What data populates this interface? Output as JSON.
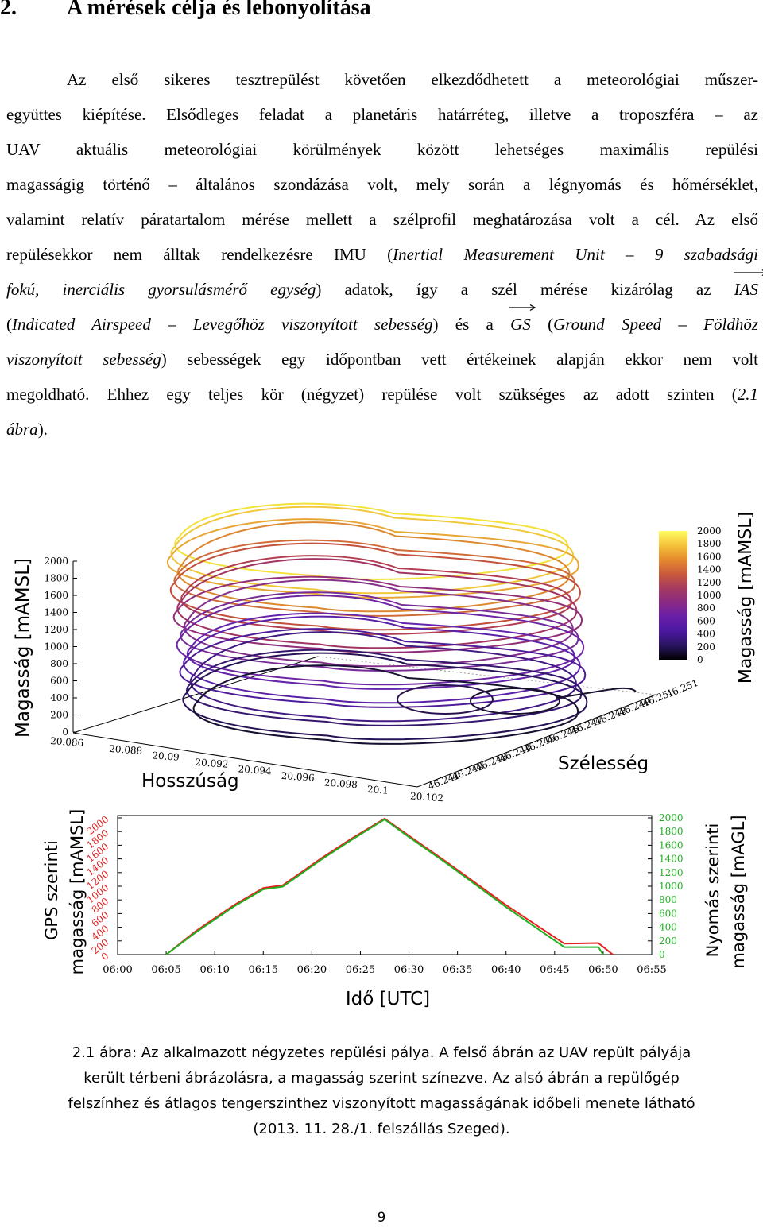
{
  "heading": {
    "number": "2.",
    "title": "A mérések célja és lebonyolítása"
  },
  "paragraph": {
    "l1": "Az első sikeres tesztrepülést követően elkezdődhetett a meteorológiai műszer-",
    "l2": "együttes kiépítése. Elsődleges feladat a planetáris határréteg, illetve a troposzféra – az",
    "l3": "UAV aktuális meteorológiai körülmények között lehetséges maximális repülési",
    "l4": "magasságig történő – általános szondázása volt, mely során a légnyomás és hőmérséklet,",
    "l5": "valamint relatív páratartalom mérése mellett a szélprofil meghatározása volt a cél. Az első",
    "l6a": "repülésekkor nem álltak rendelkezésre IMU (",
    "l6b": "Inertial Measurement Unit – 9 szabadsági",
    "l7a": "fokú, inerciális gyorsulásmérő egység",
    "l7b": ") adatok, így a szél mérése kizárólag az",
    "ias": "IAS",
    "l8a": "(",
    "l8b": "Indicated Airspeed – Levegőhöz viszonyított sebesség",
    "l8c": ") és a",
    "gs": "GS",
    "l8d": "(",
    "l8e": "Ground Speed – Földhöz",
    "l9a": "viszonyított sebesség",
    "l9b": ") sebességek egy időpontban vett értékeinek alapján ekkor nem volt",
    "l10a": "megoldható. Ehhez egy teljes kör (négyzet) repülése volt szükséges az adott szinten (",
    "l10b": "2.1",
    "l11a": "ábra",
    "l11b": ")."
  },
  "chart_data": [
    {
      "type": "3d-line",
      "zlabel": "Magasság [mAMSL]",
      "xlabel": "Hosszúság",
      "ylabel": "Szélesség",
      "zticks": [
        "2000",
        "1800",
        "1600",
        "1400",
        "1200",
        "1000",
        "800",
        "600",
        "400",
        "200",
        "0"
      ],
      "xticks": [
        "20.086",
        "20.088",
        "20.09",
        "20.092",
        "20.094",
        "20.096",
        "20.098",
        "20.1",
        "20.102"
      ],
      "yticks": [
        "46.241",
        "46.242",
        "46.243",
        "46.244",
        "46.245",
        "46.246",
        "46.247",
        "46.248",
        "46.249",
        "46.25",
        "46.251"
      ],
      "zlim": [
        0,
        2000
      ],
      "colorbar": {
        "label": "Magasság [mAMSL]",
        "ticks": [
          "2000",
          "1800",
          "1600",
          "1400",
          "1200",
          "1000",
          "800",
          "600",
          "400",
          "200",
          "0"
        ],
        "colors": [
          "#fffd60",
          "#f5c33a",
          "#e58a2e",
          "#c95a3c",
          "#a63a5e",
          "#8a2a86",
          "#6a1ea8",
          "#4a18a0",
          "#2a1460",
          "#000000"
        ]
      },
      "levels": [
        {
          "altitude": 2000,
          "color": "#f2e23a"
        },
        {
          "altitude": 1900,
          "color": "#f0c83a"
        },
        {
          "altitude": 1800,
          "color": "#e8a634"
        },
        {
          "altitude": 1700,
          "color": "#dd8830"
        },
        {
          "altitude": 1600,
          "color": "#d06a38"
        },
        {
          "altitude": 1500,
          "color": "#c2503e"
        },
        {
          "altitude": 1400,
          "color": "#b23e52"
        },
        {
          "altitude": 1300,
          "color": "#a23464"
        },
        {
          "altitude": 1200,
          "color": "#922f78"
        },
        {
          "altitude": 1100,
          "color": "#84308a"
        },
        {
          "altitude": 1000,
          "color": "#782c98"
        },
        {
          "altitude": 900,
          "color": "#6c26a4"
        },
        {
          "altitude": 800,
          "color": "#6424ac"
        },
        {
          "altitude": 700,
          "color": "#5a20a8"
        },
        {
          "altitude": 600,
          "color": "#4e1c98"
        },
        {
          "altitude": 500,
          "color": "#421a84"
        },
        {
          "altitude": 400,
          "color": "#34166c"
        },
        {
          "altitude": 300,
          "color": "#261254"
        },
        {
          "altitude": 200,
          "color": "#181030"
        }
      ]
    },
    {
      "type": "line",
      "xlabel": "Idő [UTC]",
      "ylabel": "GPS szerinti magasság [mAMSL]",
      "y2label": "Nyomás szerinti magasság [mAGL]",
      "xticks": [
        "06:00",
        "06:05",
        "06:10",
        "06:15",
        "06:20",
        "06:25",
        "06:30",
        "06:35",
        "06:40",
        "06:45",
        "06:50",
        "06:55"
      ],
      "yticks_left": [
        "2000",
        "1800",
        "1600",
        "1400",
        "1200",
        "1000",
        "800",
        "600",
        "400",
        "200",
        "0"
      ],
      "yticks_right": [
        "2000",
        "1800",
        "1600",
        "1400",
        "1200",
        "1000",
        "800",
        "600",
        "400",
        "200",
        "0"
      ],
      "ylim": [
        0,
        2000
      ],
      "series": [
        {
          "color": "#e82020",
          "x": [
            "06:05",
            "06:08",
            "06:12",
            "06:15",
            "06:17",
            "06:21",
            "06:24",
            "06:27.5",
            "06:30",
            "06:34",
            "06:40",
            "06:46",
            "06:49.5",
            "06:51"
          ],
          "y": [
            0,
            340,
            730,
            980,
            1020,
            1420,
            1700,
            2000,
            1750,
            1350,
            730,
            160,
            170,
            0
          ]
        },
        {
          "color": "#20b020",
          "x": [
            "06:05",
            "06:08",
            "06:12",
            "06:15",
            "06:17",
            "06:21",
            "06:24",
            "06:27.5",
            "06:30",
            "06:34",
            "06:40",
            "06:46",
            "06:49.5",
            "06:50"
          ],
          "y": [
            -20,
            320,
            710,
            960,
            1000,
            1400,
            1680,
            1990,
            1730,
            1330,
            700,
            110,
            110,
            -10
          ]
        }
      ]
    }
  ],
  "caption": {
    "l1": "2.1 ábra: Az alkalmazott négyzetes repülési pálya. A felső ábrán az UAV repült pályája",
    "l2": "került térbeni ábrázolásra, a magasság szerint színezve. Az alsó ábrán a repülőgép",
    "l3": "felszínhez és átlagos tengerszinthez viszonyított magasságának időbeli menete látható",
    "l4": "(2013. 11. 28./1. felszállás Szeged)."
  },
  "page_number": "9"
}
